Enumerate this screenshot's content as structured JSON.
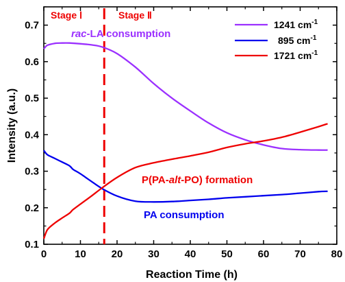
{
  "chart_data": {
    "type": "line",
    "xlabel": "Reaction Time (h)",
    "ylabel": "Intensity (a.u.)",
    "xlim": [
      0,
      80
    ],
    "ylim": [
      0.1,
      0.75
    ],
    "xticks": [
      0,
      10,
      20,
      30,
      40,
      50,
      60,
      70,
      80
    ],
    "xtick_labels": [
      "0",
      "10",
      "20",
      "30",
      "40",
      "50",
      "60",
      "70",
      "80"
    ],
    "yticks": [
      0.1,
      0.2,
      0.3,
      0.4,
      0.5,
      0.6,
      0.7
    ],
    "ytick_labels": [
      "0.1",
      "0.2",
      "0.3",
      "0.4",
      "0.5",
      "0.6",
      "0.7"
    ],
    "grid": false,
    "legend_position": "top-right",
    "series": [
      {
        "name": "1241 cm",
        "name_sup": "-1",
        "color": "#9b30ff",
        "x": [
          0,
          1,
          3,
          5,
          7,
          10,
          13,
          16,
          20,
          25,
          30,
          35,
          40,
          45,
          50,
          55,
          60,
          65,
          70,
          75,
          77.5
        ],
        "y": [
          0.635,
          0.645,
          0.65,
          0.651,
          0.651,
          0.649,
          0.646,
          0.64,
          0.622,
          0.585,
          0.54,
          0.5,
          0.465,
          0.432,
          0.405,
          0.386,
          0.372,
          0.362,
          0.359,
          0.358,
          0.358
        ]
      },
      {
        "name": "895 cm",
        "name_sup": "-1",
        "color": "#0000ee",
        "x": [
          0,
          1,
          3,
          5,
          7,
          8,
          10,
          13,
          16,
          20,
          25,
          30,
          35,
          40,
          45,
          50,
          55,
          60,
          65,
          70,
          75,
          77.5
        ],
        "y": [
          0.357,
          0.345,
          0.335,
          0.325,
          0.315,
          0.305,
          0.293,
          0.272,
          0.252,
          0.232,
          0.218,
          0.216,
          0.217,
          0.22,
          0.223,
          0.227,
          0.23,
          0.233,
          0.236,
          0.24,
          0.244,
          0.245
        ]
      },
      {
        "name": "1721 cm",
        "name_sup": "-1",
        "color": "#ee0000",
        "x": [
          0,
          1,
          3,
          5,
          7,
          8,
          10,
          13,
          16,
          20,
          25,
          30,
          35,
          40,
          45,
          50,
          55,
          60,
          65,
          70,
          75,
          77.5
        ],
        "y": [
          0.115,
          0.14,
          0.158,
          0.172,
          0.185,
          0.195,
          0.21,
          0.232,
          0.255,
          0.283,
          0.31,
          0.323,
          0.333,
          0.342,
          0.352,
          0.365,
          0.375,
          0.383,
          0.393,
          0.407,
          0.422,
          0.43
        ]
      }
    ],
    "stage_divider": {
      "x": 16.5,
      "color": "#ee0000"
    },
    "stages": [
      {
        "label": "Stage Ⅰ",
        "color": "#ee0000"
      },
      {
        "label": "Stage Ⅱ",
        "color": "#ee0000"
      }
    ],
    "annotations": [
      {
        "prefix": "rac",
        "text": "-LA consumption",
        "color": "#9b30ff"
      },
      {
        "prefix": "P(PA-",
        "italic": "alt",
        "suffix": "-PO) formation",
        "color": "#ee0000"
      },
      {
        "text": "PA consumption",
        "color": "#0000ee"
      }
    ]
  }
}
